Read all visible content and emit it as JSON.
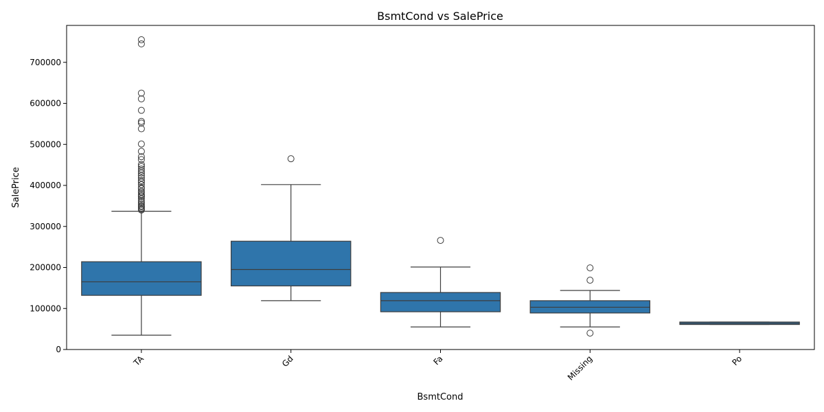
{
  "chart_data": {
    "type": "box",
    "title": "BsmtCond vs SalePrice",
    "xlabel": "BsmtCond",
    "ylabel": "SalePrice",
    "ylim": [
      0,
      790000
    ],
    "yticks": [
      0,
      100000,
      200000,
      300000,
      400000,
      500000,
      600000,
      700000
    ],
    "ytick_labels": [
      "0",
      "100000",
      "200000",
      "300000",
      "400000",
      "500000",
      "600000",
      "700000"
    ],
    "categories": [
      "TA",
      "Gd",
      "Fa",
      "Missing",
      "Po"
    ],
    "color": "#2f75ab",
    "edge_color": "#3d3d3d",
    "grid": false,
    "boxes": [
      {
        "category": "TA",
        "whisker_low": 35000,
        "q1": 132000,
        "median": 165000,
        "q3": 214000,
        "whisker_high": 337000,
        "outliers": [
          340000,
          342000,
          345000,
          348000,
          350000,
          354000,
          358000,
          362000,
          367000,
          372000,
          375000,
          378000,
          383000,
          386000,
          392000,
          395000,
          402000,
          408000,
          412000,
          418000,
          424000,
          430000,
          435000,
          440000,
          446000,
          451000,
          463000,
          470000,
          483000,
          501000,
          538000,
          552000,
          556000,
          583000,
          611000,
          625000,
          745000,
          755000
        ]
      },
      {
        "category": "Gd",
        "whisker_low": 119000,
        "q1": 155000,
        "median": 195000,
        "q3": 264000,
        "whisker_high": 402000,
        "outliers": [
          465000
        ]
      },
      {
        "category": "Fa",
        "whisker_low": 55000,
        "q1": 92000,
        "median": 119000,
        "q3": 139000,
        "whisker_high": 201000,
        "outliers": [
          266000
        ]
      },
      {
        "category": "Missing",
        "whisker_low": 55000,
        "q1": 89000,
        "median": 103000,
        "q3": 119000,
        "whisker_high": 144000,
        "outliers": [
          40000,
          169000,
          199000
        ]
      },
      {
        "category": "Po",
        "whisker_low": 61000,
        "q1": 61000,
        "median": 64000,
        "q3": 67000,
        "whisker_high": 67000,
        "outliers": []
      }
    ]
  }
}
